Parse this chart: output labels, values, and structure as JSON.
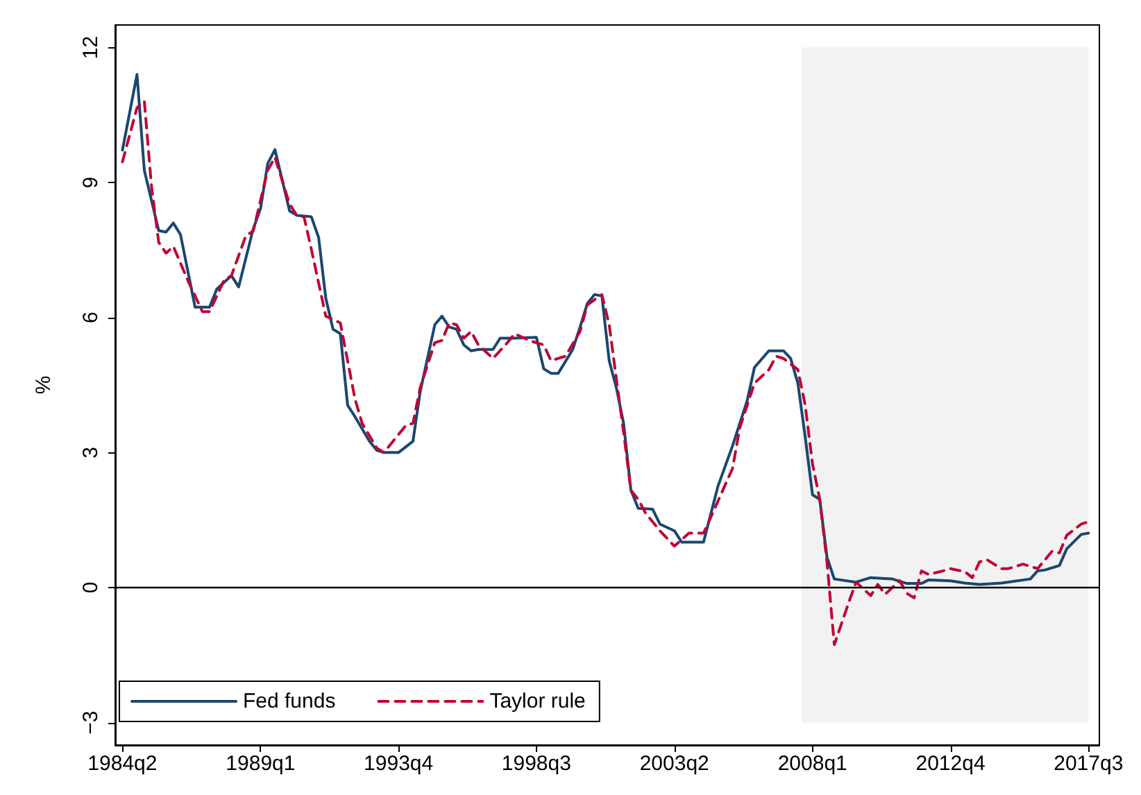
{
  "chart_data": {
    "type": "line",
    "ylabel": "%",
    "xlim": [
      "1984-01",
      "2017-11-15"
    ],
    "ylim": [
      -3.5,
      12.5
    ],
    "xticks": [
      {
        "value": "1984-04",
        "label": "1984q2"
      },
      {
        "value": "1989-01",
        "label": "1989q1"
      },
      {
        "value": "1993-10",
        "label": "1993q4"
      },
      {
        "value": "1998-07",
        "label": "1998q3"
      },
      {
        "value": "2003-04",
        "label": "2003q2"
      },
      {
        "value": "2008-01",
        "label": "2008q1"
      },
      {
        "value": "2012-10",
        "label": "2012q4"
      },
      {
        "value": "2017-07",
        "label": "2017q3"
      }
    ],
    "yticks": [
      {
        "value": -3,
        "label": "−3"
      },
      0,
      3,
      6,
      9,
      12
    ],
    "grid": false,
    "legend": "bottom left",
    "marker": "none",
    "ref_lines": [
      {
        "axis": "y",
        "value": 0,
        "color": "#000000"
      }
    ],
    "bands": [
      {
        "axis": "x",
        "from": "2007-08-15",
        "to": "2017-07",
        "color": "#f2f2f2"
      }
    ],
    "series": [
      {
        "name": "Fed funds",
        "color": "#1a476f",
        "line_style": "solid",
        "x": [
          "1984-04",
          "1984-10",
          "1985-01",
          "1985-07",
          "1985-10",
          "1986-01",
          "1986-04",
          "1986-10",
          "1987-04",
          "1987-07",
          "1988-01",
          "1988-04",
          "1988-10",
          "1989-01",
          "1989-04",
          "1989-07",
          "1990-01",
          "1990-04",
          "1990-10",
          "1991-01",
          "1991-04",
          "1991-07",
          "1991-10",
          "1992-01",
          "1992-04",
          "1992-10",
          "1993-01",
          "1993-04",
          "1993-10",
          "1994-04",
          "1994-07",
          "1995-01",
          "1995-04",
          "1995-07",
          "1995-10",
          "1996-01",
          "1996-04",
          "1996-07",
          "1997-01",
          "1997-04",
          "1997-10",
          "1998-07",
          "1998-10",
          "1999-01",
          "1999-04",
          "1999-10",
          "2000-01",
          "2000-04",
          "2000-07",
          "2000-10",
          "2001-01",
          "2001-04",
          "2001-07",
          "2001-10",
          "2002-01",
          "2002-07",
          "2002-10",
          "2003-04",
          "2003-07",
          "2003-10",
          "2004-04",
          "2004-10",
          "2005-04",
          "2005-10",
          "2006-01",
          "2006-07",
          "2007-01",
          "2007-04",
          "2007-07",
          "2007-10",
          "2008-01",
          "2008-04",
          "2008-07",
          "2008-10",
          "2009-07",
          "2010-01",
          "2010-10",
          "2011-04",
          "2011-10",
          "2012-01",
          "2012-10",
          "2013-04",
          "2013-10",
          "2014-07",
          "2015-07",
          "2015-10",
          "2016-01",
          "2016-07",
          "2016-10",
          "2017-04",
          "2017-07"
        ],
        "values": [
          9.72,
          11.4,
          9.27,
          7.93,
          7.9,
          8.1,
          7.84,
          6.23,
          6.23,
          6.63,
          6.93,
          6.68,
          7.97,
          8.42,
          9.42,
          9.73,
          8.37,
          8.27,
          8.24,
          7.78,
          6.43,
          5.74,
          5.64,
          4.05,
          3.8,
          3.25,
          3.05,
          3,
          3,
          3.25,
          4.35,
          5.84,
          6.03,
          5.79,
          5.74,
          5.39,
          5.26,
          5.29,
          5.29,
          5.54,
          5.54,
          5.56,
          4.86,
          4.76,
          4.76,
          5.29,
          5.79,
          6.31,
          6.51,
          6.48,
          5.04,
          4.44,
          3.65,
          2.16,
          1.76,
          1.74,
          1.41,
          1.26,
          1.01,
          1.01,
          1.01,
          2.26,
          3.15,
          4.15,
          4.89,
          5.26,
          5.26,
          5.09,
          4.54,
          3.35,
          2.06,
          1.96,
          0.67,
          0.19,
          0.12,
          0.22,
          0.19,
          0.09,
          0.09,
          0.17,
          0.15,
          0.1,
          0.07,
          0.1,
          0.19,
          0.37,
          0.39,
          0.49,
          0.86,
          1.18,
          1.21
        ]
      },
      {
        "name": "Taylor rule",
        "color": "#c10534",
        "line_style": "dashed",
        "x": [
          "1984-04",
          "1984-10",
          "1985-01",
          "1985-04",
          "1985-07",
          "1985-10",
          "1986-01",
          "1986-07",
          "1987-01",
          "1987-04",
          "1987-10",
          "1988-01",
          "1988-07",
          "1988-10",
          "1989-04",
          "1989-07",
          "1990-01",
          "1990-04",
          "1990-07",
          "1990-10",
          "1991-04",
          "1991-10",
          "1992-04",
          "1992-07",
          "1993-01",
          "1993-04",
          "1994-01",
          "1994-04",
          "1994-07",
          "1995-01",
          "1995-04",
          "1995-07",
          "1995-10",
          "1996-01",
          "1996-04",
          "1996-07",
          "1997-01",
          "1997-07",
          "1997-10",
          "1998-04",
          "1998-10",
          "1999-01",
          "1999-07",
          "2000-01",
          "2000-04",
          "2000-10",
          "2001-01",
          "2001-04",
          "2001-07",
          "2001-10",
          "2002-01",
          "2002-04",
          "2002-10",
          "2003-04",
          "2003-10",
          "2004-04",
          "2004-07",
          "2005-04",
          "2005-07",
          "2006-01",
          "2006-07",
          "2006-10",
          "2007-01",
          "2007-07",
          "2007-10",
          "2008-01",
          "2008-04",
          "2008-07",
          "2008-10",
          "2009-04",
          "2009-07",
          "2010-01",
          "2010-04",
          "2010-07",
          "2011-01",
          "2011-04",
          "2011-07",
          "2011-10",
          "2012-01",
          "2012-07",
          "2012-10",
          "2013-04",
          "2013-07",
          "2013-10",
          "2014-01",
          "2014-07",
          "2014-10",
          "2015-04",
          "2015-10",
          "2016-04",
          "2016-07",
          "2016-10",
          "2017-04",
          "2017-07"
        ],
        "values": [
          9.46,
          10.66,
          10.81,
          8.92,
          7.67,
          7.43,
          7.58,
          6.83,
          6.13,
          6.13,
          6.83,
          6.93,
          7.82,
          7.92,
          9.27,
          9.56,
          8.52,
          8.27,
          8.24,
          7.52,
          6.03,
          5.88,
          4.2,
          3.65,
          3.1,
          3,
          3.6,
          3.65,
          4.44,
          5.44,
          5.49,
          5.88,
          5.84,
          5.54,
          5.69,
          5.39,
          5.09,
          5.44,
          5.64,
          5.49,
          5.39,
          5.04,
          5.14,
          5.69,
          6.28,
          6.51,
          5.84,
          4.64,
          3.45,
          2.16,
          1.96,
          1.66,
          1.26,
          0.92,
          1.21,
          1.21,
          1.56,
          2.65,
          3.55,
          4.54,
          4.84,
          5.14,
          5.09,
          4.84,
          4.05,
          2.75,
          1.96,
          0.57,
          -1.27,
          -0.33,
          0.12,
          -0.18,
          0.07,
          -0.15,
          0.15,
          -0.13,
          -0.23,
          0.37,
          0.29,
          0.37,
          0.42,
          0.35,
          0.22,
          0.57,
          0.62,
          0.42,
          0.42,
          0.52,
          0.42,
          0.81,
          0.77,
          1.16,
          1.41,
          1.46
        ]
      }
    ]
  }
}
